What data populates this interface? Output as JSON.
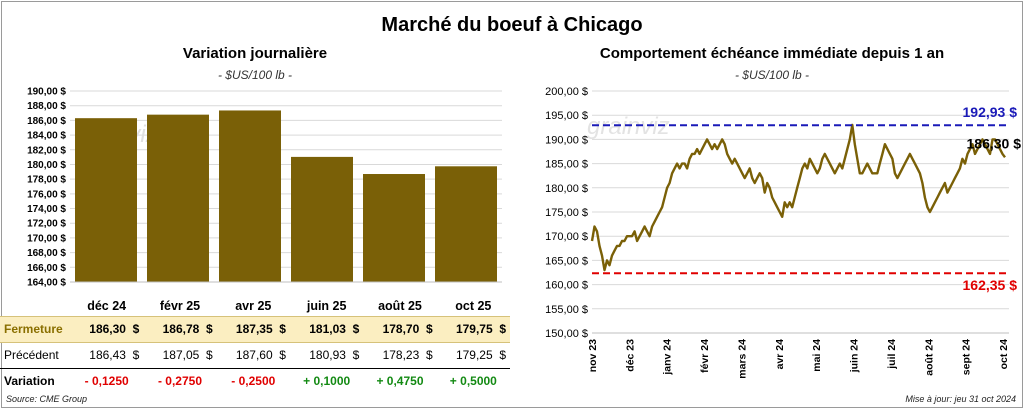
{
  "title": "Marché du boeuf à Chicago",
  "colors": {
    "bar": "#7a6007",
    "line": "#7a6007",
    "max_line": "#1a1ab8",
    "min_line": "#e00000",
    "grid": "#d9d9d9"
  },
  "left": {
    "subtitle": "Variation  journalière",
    "unit": "- $US/100 lb -"
  },
  "right": {
    "subtitle": "Comportement  échéance immédiate depuis 1 an",
    "unit": "- $US/100 lb -"
  },
  "chart_data": [
    {
      "type": "bar",
      "title": "Variation  journalière",
      "categories": [
        "déc 24",
        "févr 25",
        "avr 25",
        "juin 25",
        "août 25",
        "oct 25"
      ],
      "values": [
        186.3,
        186.78,
        187.35,
        181.03,
        178.7,
        179.75
      ],
      "ylim": [
        164,
        190
      ],
      "yticks": [
        "164,00 $",
        "166,00 $",
        "168,00 $",
        "170,00 $",
        "172,00 $",
        "174,00 $",
        "176,00 $",
        "178,00 $",
        "180,00 $",
        "182,00 $",
        "184,00 $",
        "186,00 $",
        "188,00 $",
        "190,00 $"
      ],
      "grid": true
    },
    {
      "type": "line",
      "title": "Comportement  échéance immédiate depuis 1 an",
      "ylim": [
        150,
        200
      ],
      "yticks": [
        "150,00 $",
        "155,00 $",
        "160,00 $",
        "165,00 $",
        "170,00 $",
        "175,00 $",
        "180,00 $",
        "185,00 $",
        "190,00 $",
        "195,00 $",
        "200,00 $"
      ],
      "xticks": [
        "nov 23",
        "déc 23",
        "janv 24",
        "févr 24",
        "mars 24",
        "avr 24",
        "mai 24",
        "juin 24",
        "juil 24",
        "août 24",
        "sept 24",
        "oct 24"
      ],
      "series": [
        {
          "values": [
            169,
            172,
            171,
            168,
            166,
            163,
            165,
            164,
            166,
            167,
            168,
            168,
            169,
            169,
            170,
            170,
            170,
            171,
            169,
            170,
            171,
            172,
            171,
            170,
            172,
            173,
            174,
            175,
            176,
            178,
            180,
            181,
            183,
            184,
            185,
            184,
            185,
            185,
            184,
            186,
            187,
            187,
            188,
            187,
            188,
            189,
            190,
            189,
            188,
            189,
            188,
            189,
            190,
            189,
            187,
            186,
            185,
            186,
            185,
            184,
            183,
            182,
            183,
            184,
            182,
            181,
            182,
            183,
            182,
            179,
            181,
            180,
            178,
            177,
            176,
            175,
            174,
            177,
            176,
            177,
            176,
            178,
            180,
            182,
            184,
            185,
            184,
            186,
            185,
            184,
            183,
            184,
            186,
            187,
            186,
            185,
            184,
            183,
            184,
            185,
            184,
            186,
            188,
            190,
            193,
            189,
            186,
            183,
            183,
            184,
            185,
            184,
            183,
            183,
            183,
            185,
            187,
            189,
            188,
            187,
            186,
            183,
            182,
            183,
            184,
            185,
            186,
            187,
            186,
            185,
            184,
            183,
            181,
            178,
            176,
            175,
            176,
            177,
            178,
            179,
            180,
            181,
            179,
            180,
            181,
            182,
            183,
            184,
            186,
            185,
            187,
            188,
            189,
            187,
            188,
            189,
            190,
            189,
            188,
            187,
            190,
            190,
            189,
            188,
            187,
            186.3
          ]
        }
      ],
      "reference_lines": [
        {
          "label": "192,93 $",
          "value": 192.93
        },
        {
          "label": "162,35 $",
          "value": 162.35
        }
      ],
      "last_label": "186,30 $",
      "grid": true
    }
  ],
  "table": {
    "rows": [
      {
        "label": "",
        "cells": [
          "déc 24",
          "févr 25",
          "avr 25",
          "juin 25",
          "août 25",
          "oct 25"
        ]
      },
      {
        "label": "Fermeture",
        "cells": [
          "186,30",
          "186,78",
          "187,35",
          "181,03",
          "178,70",
          "179,75"
        ]
      },
      {
        "label": "Précédent",
        "cells": [
          "186,43",
          "187,05",
          "187,60",
          "180,93",
          "178,23",
          "179,25"
        ]
      },
      {
        "label": "Variation",
        "cells": [
          "- 0,1250",
          "- 0,2750",
          "- 0,2500",
          "+ 0,1000",
          "+ 0,4750",
          "+ 0,5000"
        ]
      }
    ],
    "currency": "$"
  },
  "watermark": "grainviz",
  "footer": {
    "source": "Source: CME Group",
    "updated": "Mise à jour: jeu 31 oct 2024"
  }
}
